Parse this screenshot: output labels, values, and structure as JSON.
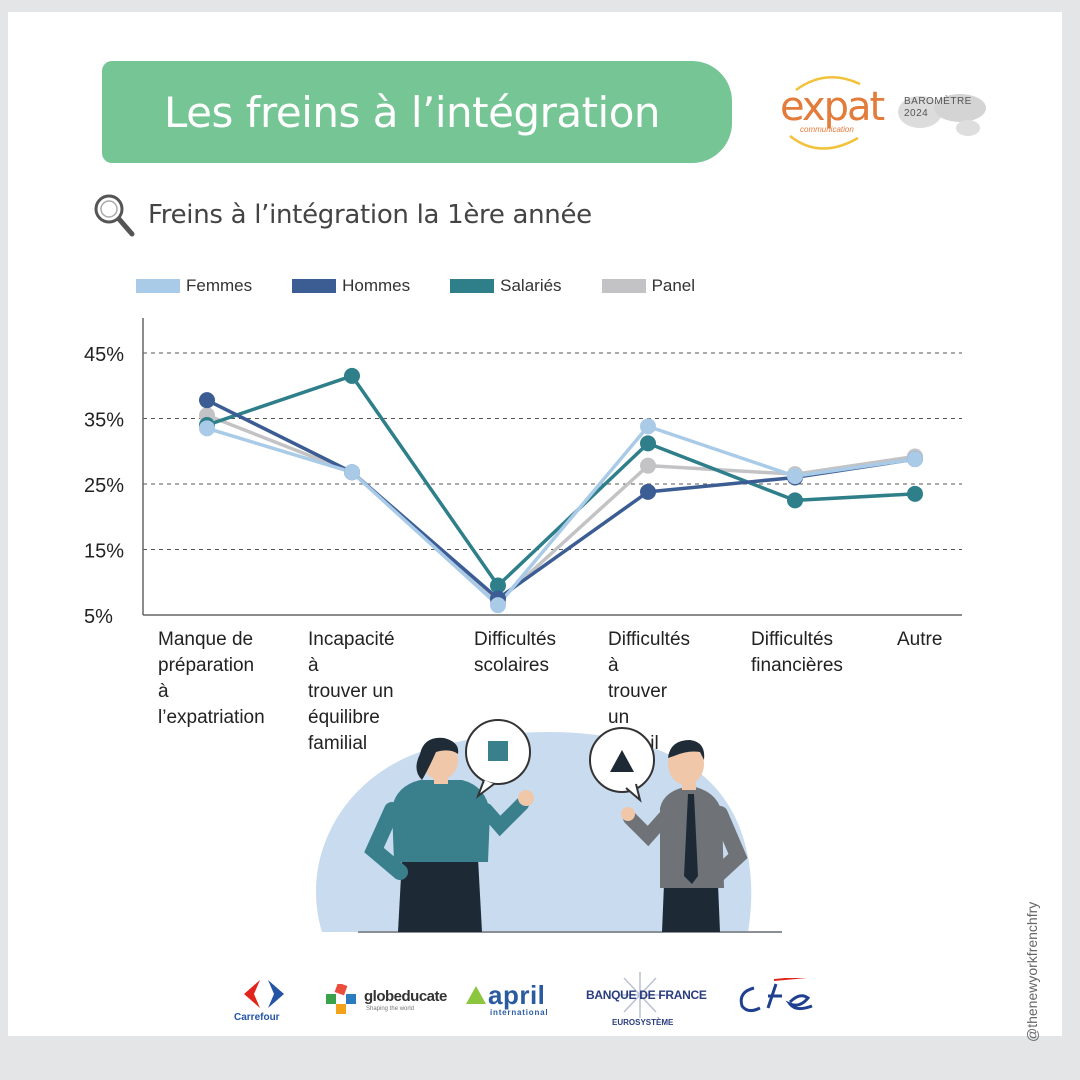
{
  "header": {
    "title": "Les freins à l’intégration",
    "subtitle": "Freins à l’intégration la 1ère année"
  },
  "logos": {
    "expat_word": "expat",
    "expat_sub": "communication",
    "barometre_line1": "BAROMÈTRE",
    "barometre_line2": "2024",
    "carrefour": "Carrefour",
    "globeducate": "globeducate",
    "globeducate_sub": "Shaping the world",
    "april": "april",
    "april_sub": "international",
    "bdf": "BANQUE DE FRANCE",
    "bdf_sub": "EUROSYSTÈME"
  },
  "watermark": "@thenewyorkfrenchfry",
  "colors": {
    "banner": "#76c594",
    "femmes": "#a9cbe8",
    "hommes": "#3b5d94",
    "salaries": "#2e7f8a",
    "panel": "#c3c3c6"
  },
  "icons": {
    "subtitle_icon": "magnifier-icon",
    "bubble_left": "square-icon",
    "bubble_right": "triangle-icon"
  },
  "chart_data": {
    "type": "line",
    "categories": [
      "Manque de\npréparation à\nl’expatriation",
      "Incapacité à\ntrouver un\néquilibre\nfamilial",
      "Difficultés\nscolaires",
      "Difficultés à\ntrouver un\ntravail pour le\nconjoint",
      "Difficultés\nfinancières",
      "Autre"
    ],
    "series": [
      {
        "name": "Femmes",
        "values": [
          33.5,
          26.8,
          6.5,
          33.8,
          26.2,
          28.8
        ]
      },
      {
        "name": "Hommes",
        "values": [
          37.8,
          26.8,
          7.5,
          23.8,
          26.0,
          28.8
        ]
      },
      {
        "name": "Salariés",
        "values": [
          34.0,
          41.5,
          9.5,
          31.2,
          22.5,
          23.5
        ]
      },
      {
        "name": "Panel",
        "values": [
          35.5,
          26.8,
          7.0,
          27.8,
          26.5,
          29.2
        ]
      }
    ],
    "y_ticks": [
      "45%",
      "35%",
      "25%",
      "15%",
      "5%"
    ],
    "y_tick_values": [
      45,
      35,
      25,
      15,
      5
    ],
    "ylim": [
      5,
      50
    ],
    "grid": "dashed horizontal",
    "legend_position": "top-left"
  }
}
